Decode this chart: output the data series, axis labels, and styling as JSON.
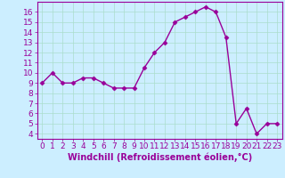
{
  "x": [
    0,
    1,
    2,
    3,
    4,
    5,
    6,
    7,
    8,
    9,
    10,
    11,
    12,
    13,
    14,
    15,
    16,
    17,
    18,
    19,
    20,
    21,
    22,
    23
  ],
  "y": [
    9,
    10,
    9,
    9,
    9.5,
    9.5,
    9,
    8.5,
    8.5,
    8.5,
    10.5,
    12.0,
    13.0,
    15.0,
    15.5,
    16.0,
    16.5,
    16.0,
    13.5,
    5.0,
    6.5,
    4.0,
    5.0,
    5.0
  ],
  "line_color": "#990099",
  "marker": "D",
  "marker_size": 2.5,
  "bg_color": "#cceeff",
  "grid_color": "#aaddcc",
  "xlabel": "Windchill (Refroidissement éolien,°C)",
  "xlim": [
    -0.5,
    23.5
  ],
  "ylim": [
    3.5,
    17.0
  ],
  "yticks": [
    4,
    5,
    6,
    7,
    8,
    9,
    10,
    11,
    12,
    13,
    14,
    15,
    16
  ],
  "xticks": [
    0,
    1,
    2,
    3,
    4,
    5,
    6,
    7,
    8,
    9,
    10,
    11,
    12,
    13,
    14,
    15,
    16,
    17,
    18,
    19,
    20,
    21,
    22,
    23
  ],
  "tick_label_fontsize": 6.5,
  "xlabel_fontsize": 7.0,
  "line_width": 1.0
}
